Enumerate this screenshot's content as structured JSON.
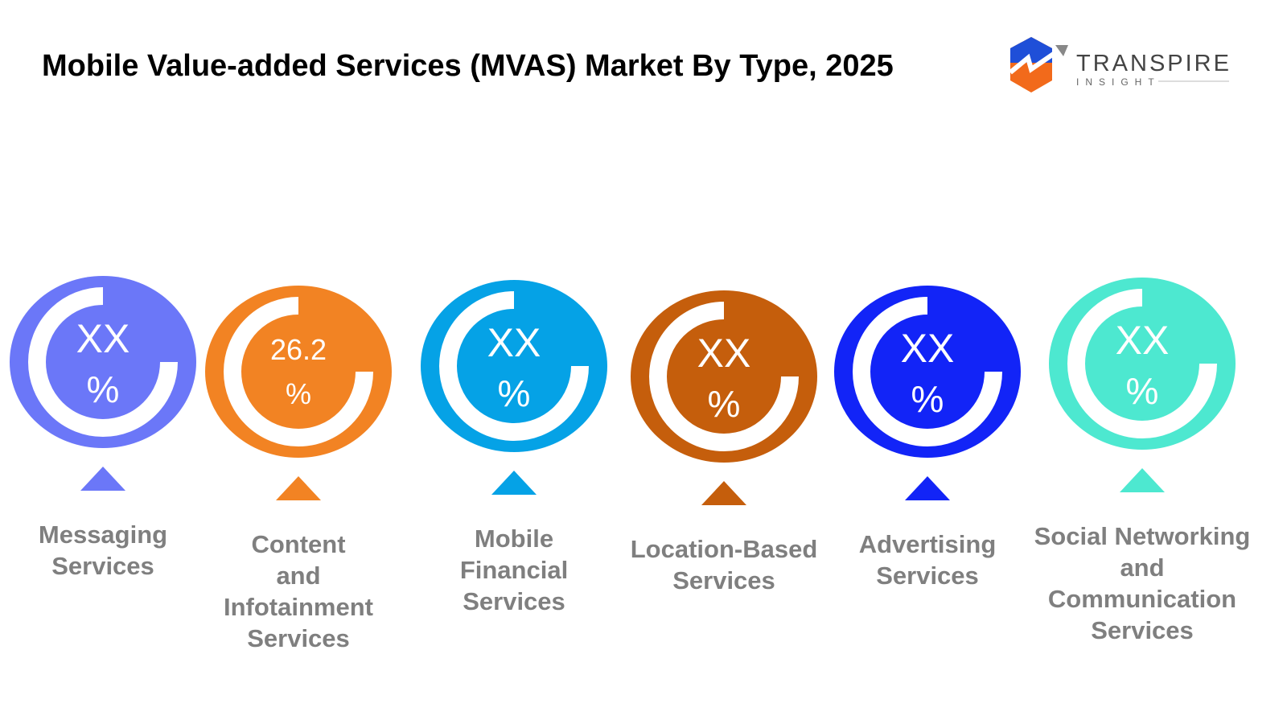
{
  "header": {
    "title": "Mobile Value-added Services (MVAS) Market By Type, 2025"
  },
  "logo": {
    "name": "TRANSPIRE",
    "tagline": "INSIGHT"
  },
  "items": [
    {
      "label": [
        "Messaging",
        "Services"
      ],
      "value": "XX",
      "unit": "%",
      "color": "#6b77f8"
    },
    {
      "label": [
        "Content",
        "and",
        "Infotainment",
        "Services"
      ],
      "value": "26.2",
      "unit": "%",
      "color": "#f28323"
    },
    {
      "label": [
        "Mobile",
        "Financial",
        "Services"
      ],
      "value": "XX",
      "unit": "%",
      "color": "#05a2e6"
    },
    {
      "label": [
        "Location-Based",
        "Services"
      ],
      "value": "XX",
      "unit": "%",
      "color": "#c55e0c"
    },
    {
      "label": [
        "Advertising",
        "Services"
      ],
      "value": "XX",
      "unit": "%",
      "color": "#1224f7"
    },
    {
      "label": [
        "Social Networking",
        "and",
        "Communication",
        "Services"
      ],
      "value": "XX",
      "unit": "%",
      "color": "#4de8d0"
    }
  ]
}
